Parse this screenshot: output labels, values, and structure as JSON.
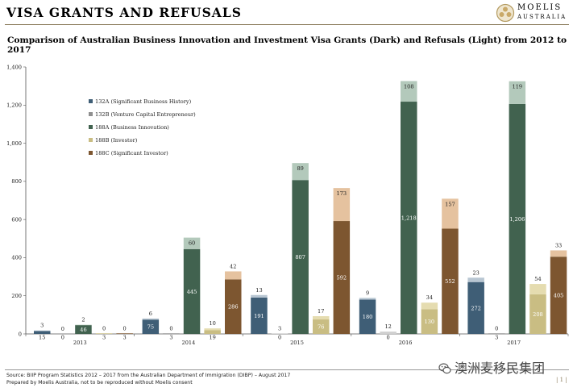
{
  "header": {
    "title": "VISA GRANTS AND REFUSALS"
  },
  "logo": {
    "name": "MOELIS",
    "sub": "AUSTRALIA"
  },
  "chart_title": "Comparison of Australian Business Innovation and Investment Visa Grants (Dark) and Refusals (Light) from 2012 to 2017",
  "chart_data": {
    "type": "bar",
    "stacked": true,
    "title": "Comparison of Australian Business Innovation and Investment Visa Grants (Dark) and Refusals (Light) from 2012 to 2017",
    "ylim": [
      0,
      1400
    ],
    "yticks": [
      0,
      200,
      400,
      600,
      800,
      1000,
      1200,
      1400
    ],
    "ytick_labels": [
      "0",
      "200",
      "400",
      "600",
      "800",
      "1,000",
      "1,200",
      "1,400"
    ],
    "legend_position": "top-left",
    "grid": false,
    "categories": [
      "2013",
      "2014",
      "2015",
      "2016",
      "2017"
    ],
    "series": [
      {
        "name": "132A (Significant Business History)",
        "grant_color": "#3f5e76",
        "refusal_color": "#b8c6d2",
        "grants": [
          15,
          75,
          191,
          180,
          272
        ],
        "refusals": [
          3,
          6,
          13,
          9,
          23
        ],
        "grant_labels": [
          "15",
          "75",
          "191",
          "180",
          "272"
        ],
        "refusal_labels": [
          "3",
          "6",
          "13",
          "9",
          "23"
        ]
      },
      {
        "name": "132B (Venture Capital Entrepreneur)",
        "grant_color": "#8f8f8f",
        "refusal_color": "#cfcfcf",
        "grants": [
          0,
          3,
          0,
          0,
          3
        ],
        "refusals": [
          0,
          0,
          3,
          12,
          0
        ],
        "grant_labels": [
          "0",
          "3",
          "0",
          "0",
          "3"
        ],
        "refusal_labels": [
          "0",
          "0",
          "3",
          "12",
          "0"
        ]
      },
      {
        "name": "188A (Business Innovation)",
        "grant_color": "#41624f",
        "refusal_color": "#b3c9bb",
        "grants": [
          46,
          445,
          807,
          1218,
          1206
        ],
        "refusals": [
          2,
          60,
          89,
          108,
          119
        ],
        "grant_labels": [
          "46",
          "445",
          "807",
          "1,218",
          "1,206"
        ],
        "refusal_labels": [
          "2",
          "60",
          "89",
          "108",
          "119"
        ]
      },
      {
        "name": "188B (Investor)",
        "grant_color": "#c9bd83",
        "refusal_color": "#e5dcb0",
        "grants": [
          3,
          19,
          76,
          130,
          208
        ],
        "refusals": [
          0,
          10,
          17,
          34,
          54
        ],
        "grant_labels": [
          "3",
          "19",
          "76",
          "130",
          "208"
        ],
        "refusal_labels": [
          "0",
          "10",
          "17",
          "34",
          "54"
        ]
      },
      {
        "name": "188C (Significant Investor)",
        "grant_color": "#7d5630",
        "refusal_color": "#e5c29f",
        "grants": [
          3,
          286,
          592,
          552,
          405
        ],
        "refusals": [
          0,
          42,
          173,
          157,
          33
        ],
        "grant_labels": [
          "3",
          "286",
          "592",
          "552",
          "405"
        ],
        "refusal_labels": [
          "0",
          "42",
          "173",
          "157",
          "33"
        ]
      }
    ]
  },
  "footer": {
    "source": "Source:   BIIP Program Statistics 2012 – 2017 from the Australian Department of Immigration (DIBP) – August 2017",
    "prepared": "Prepared by Moelis Australia, not to be reproduced without Moelis consent",
    "page": "| 1 |"
  },
  "watermark": {
    "text": "澳洲麦移民集团"
  }
}
